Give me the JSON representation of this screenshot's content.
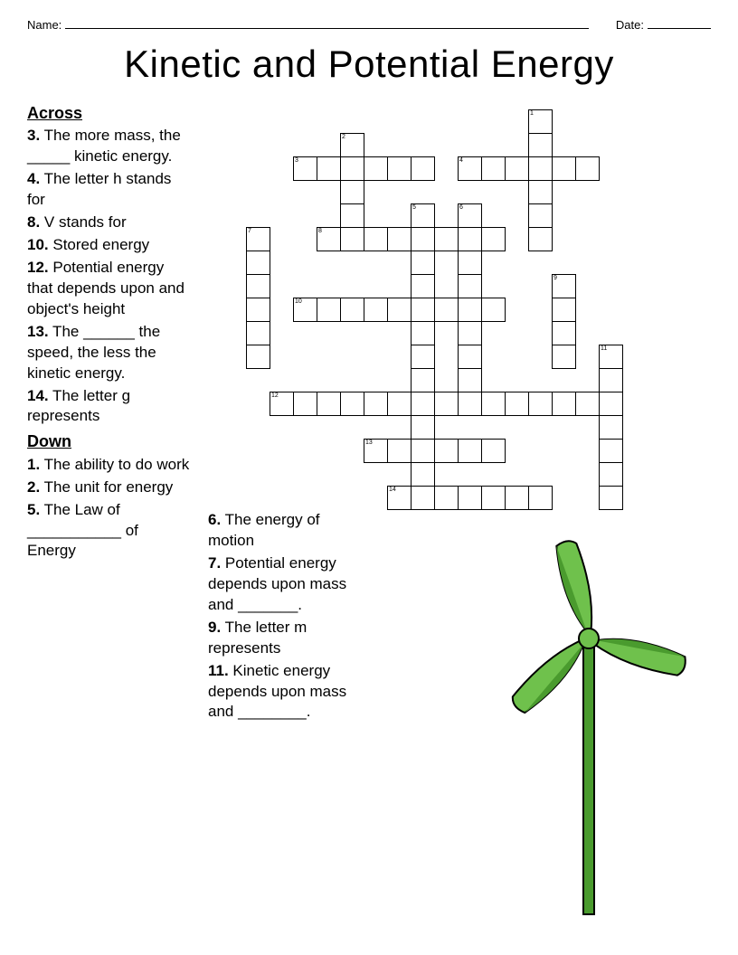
{
  "header": {
    "name_label": "Name:",
    "date_label": "Date:"
  },
  "title": "Kinetic and Potential Energy",
  "sections": {
    "across_label": "Across",
    "down_label": "Down"
  },
  "across": [
    {
      "num": "3.",
      "text": " The more mass, the _____ kinetic energy."
    },
    {
      "num": "4.",
      "text": " The letter h stands for"
    },
    {
      "num": "8.",
      "text": " V stands for"
    },
    {
      "num": "10.",
      "text": " Stored energy"
    },
    {
      "num": "12.",
      "text": " Potential energy that depends upon and object's height"
    },
    {
      "num": "13.",
      "text": " The ______ the speed, the less the kinetic energy."
    },
    {
      "num": "14.",
      "text": " The letter g represents"
    }
  ],
  "down_col1": [
    {
      "num": "1.",
      "text": " The ability to do work"
    },
    {
      "num": "2.",
      "text": " The unit for energy"
    },
    {
      "num": "5.",
      "text": " The Law of ___________ of Energy"
    }
  ],
  "down_col2": [
    {
      "num": "6.",
      "text": " The energy of motion"
    },
    {
      "num": "7.",
      "text": " Potential energy depends upon mass and _______."
    },
    {
      "num": "9.",
      "text": " The letter m represents"
    },
    {
      "num": "11.",
      "text": " Kinetic energy depends upon mass and ________."
    }
  ],
  "grid": {
    "cell_size": 27,
    "cells": [
      {
        "r": 0,
        "c": 13,
        "n": "1"
      },
      {
        "r": 1,
        "c": 5,
        "n": "2"
      },
      {
        "r": 1,
        "c": 13
      },
      {
        "r": 2,
        "c": 3,
        "n": "3"
      },
      {
        "r": 2,
        "c": 4
      },
      {
        "r": 2,
        "c": 5
      },
      {
        "r": 2,
        "c": 6
      },
      {
        "r": 2,
        "c": 7
      },
      {
        "r": 2,
        "c": 8
      },
      {
        "r": 2,
        "c": 10,
        "n": "4"
      },
      {
        "r": 2,
        "c": 11
      },
      {
        "r": 2,
        "c": 12
      },
      {
        "r": 2,
        "c": 13
      },
      {
        "r": 2,
        "c": 14
      },
      {
        "r": 2,
        "c": 15
      },
      {
        "r": 3,
        "c": 5
      },
      {
        "r": 3,
        "c": 13
      },
      {
        "r": 4,
        "c": 5
      },
      {
        "r": 4,
        "c": 8,
        "n": "5"
      },
      {
        "r": 4,
        "c": 10,
        "n": "6"
      },
      {
        "r": 4,
        "c": 13
      },
      {
        "r": 5,
        "c": 1,
        "n": "7"
      },
      {
        "r": 5,
        "c": 4,
        "n": "8"
      },
      {
        "r": 5,
        "c": 5
      },
      {
        "r": 5,
        "c": 6
      },
      {
        "r": 5,
        "c": 7
      },
      {
        "r": 5,
        "c": 8
      },
      {
        "r": 5,
        "c": 9
      },
      {
        "r": 5,
        "c": 10
      },
      {
        "r": 5,
        "c": 11
      },
      {
        "r": 5,
        "c": 13
      },
      {
        "r": 6,
        "c": 1
      },
      {
        "r": 6,
        "c": 8
      },
      {
        "r": 6,
        "c": 10
      },
      {
        "r": 7,
        "c": 1
      },
      {
        "r": 7,
        "c": 8
      },
      {
        "r": 7,
        "c": 10
      },
      {
        "r": 7,
        "c": 14,
        "n": "9"
      },
      {
        "r": 8,
        "c": 1
      },
      {
        "r": 8,
        "c": 3,
        "n": "10"
      },
      {
        "r": 8,
        "c": 4
      },
      {
        "r": 8,
        "c": 5
      },
      {
        "r": 8,
        "c": 6
      },
      {
        "r": 8,
        "c": 7
      },
      {
        "r": 8,
        "c": 8
      },
      {
        "r": 8,
        "c": 9
      },
      {
        "r": 8,
        "c": 10
      },
      {
        "r": 8,
        "c": 11
      },
      {
        "r": 8,
        "c": 14
      },
      {
        "r": 9,
        "c": 1
      },
      {
        "r": 9,
        "c": 8
      },
      {
        "r": 9,
        "c": 10
      },
      {
        "r": 9,
        "c": 14
      },
      {
        "r": 10,
        "c": 1
      },
      {
        "r": 10,
        "c": 8
      },
      {
        "r": 10,
        "c": 10
      },
      {
        "r": 10,
        "c": 14
      },
      {
        "r": 10,
        "c": 16,
        "n": "11"
      },
      {
        "r": 11,
        "c": 8
      },
      {
        "r": 11,
        "c": 10
      },
      {
        "r": 11,
        "c": 16
      },
      {
        "r": 12,
        "c": 2,
        "n": "12"
      },
      {
        "r": 12,
        "c": 3
      },
      {
        "r": 12,
        "c": 4
      },
      {
        "r": 12,
        "c": 5
      },
      {
        "r": 12,
        "c": 6
      },
      {
        "r": 12,
        "c": 7
      },
      {
        "r": 12,
        "c": 8
      },
      {
        "r": 12,
        "c": 9
      },
      {
        "r": 12,
        "c": 10
      },
      {
        "r": 12,
        "c": 11
      },
      {
        "r": 12,
        "c": 12
      },
      {
        "r": 12,
        "c": 13
      },
      {
        "r": 12,
        "c": 14
      },
      {
        "r": 12,
        "c": 15
      },
      {
        "r": 12,
        "c": 16
      },
      {
        "r": 13,
        "c": 8
      },
      {
        "r": 13,
        "c": 16
      },
      {
        "r": 14,
        "c": 6,
        "n": "13"
      },
      {
        "r": 14,
        "c": 7
      },
      {
        "r": 14,
        "c": 8
      },
      {
        "r": 14,
        "c": 9
      },
      {
        "r": 14,
        "c": 10
      },
      {
        "r": 14,
        "c": 11
      },
      {
        "r": 14,
        "c": 16
      },
      {
        "r": 15,
        "c": 8
      },
      {
        "r": 15,
        "c": 16
      },
      {
        "r": 16,
        "c": 7,
        "n": "14"
      },
      {
        "r": 16,
        "c": 8
      },
      {
        "r": 16,
        "c": 9
      },
      {
        "r": 16,
        "c": 10
      },
      {
        "r": 16,
        "c": 11
      },
      {
        "r": 16,
        "c": 12
      },
      {
        "r": 16,
        "c": 13
      },
      {
        "r": 16,
        "c": 16
      }
    ]
  },
  "turbine": {
    "blade_color": "#4a9b2e",
    "blade_light": "#6fc14c",
    "pole_color": "#4a9b2e",
    "outline": "#000000"
  }
}
